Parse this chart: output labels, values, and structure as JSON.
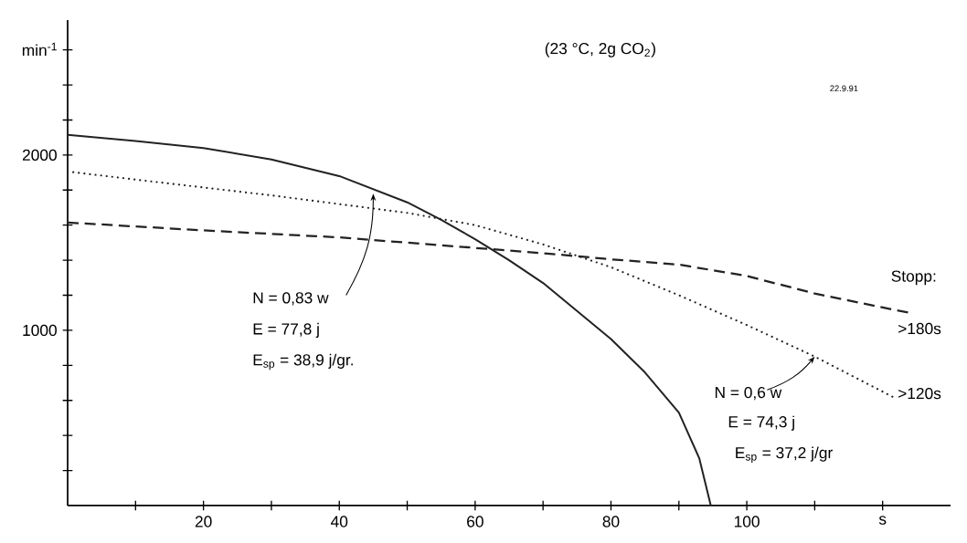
{
  "chart_data": {
    "type": "line",
    "title": "(23 °C, 2g CO$_{2}$)",
    "xlim": [
      0,
      130
    ],
    "ylim": [
      0,
      2770
    ],
    "xticks": [
      {
        "value": 10,
        "label": null
      },
      20,
      {
        "value": 30,
        "label": null
      },
      40,
      {
        "value": 50,
        "label": null
      },
      60,
      {
        "value": 70,
        "label": null
      },
      80,
      {
        "value": 90,
        "label": null
      },
      100,
      {
        "value": 110,
        "label": null
      },
      {
        "value": 120,
        "label": "s"
      }
    ],
    "yticks": [
      {
        "value": 200,
        "label": null
      },
      {
        "value": 400,
        "label": null
      },
      {
        "value": 600,
        "label": null
      },
      {
        "value": 800,
        "label": null
      },
      1000,
      {
        "value": 1200,
        "label": null
      },
      {
        "value": 1400,
        "label": null
      },
      {
        "value": 1600,
        "label": null
      },
      {
        "value": 1800,
        "label": null
      },
      2000,
      {
        "value": 2200,
        "label": null
      },
      {
        "value": 2400,
        "label": null
      },
      {
        "value": 2600,
        "label": null
      }
    ],
    "ylabel": "min$^{-1}$",
    "grid": false,
    "series": [
      {
        "color": "#222222",
        "line_style": "solid",
        "x": [
          0,
          10,
          20,
          30,
          40,
          50,
          55,
          60,
          65,
          70,
          75,
          80,
          85,
          90,
          93,
          94.7
        ],
        "values": [
          2115,
          2080,
          2040,
          1975,
          1880,
          1730,
          1630,
          1520,
          1400,
          1270,
          1110,
          950,
          760,
          530,
          270,
          0
        ]
      },
      {
        "color": "#222222",
        "line_style": "dotted",
        "x": [
          0,
          10,
          20,
          30,
          40,
          50,
          60,
          70,
          80,
          90,
          100,
          110,
          120,
          122
        ],
        "values": [
          1906,
          1860,
          1815,
          1770,
          1720,
          1670,
          1600,
          1490,
          1360,
          1200,
          1030,
          850,
          650,
          610
        ]
      },
      {
        "color": "#222222",
        "line_style": "dashed",
        "x": [
          0,
          20,
          40,
          60,
          70,
          80,
          90,
          100,
          110,
          120,
          124
        ],
        "values": [
          1615,
          1570,
          1530,
          1470,
          1440,
          1405,
          1375,
          1310,
          1210,
          1130,
          1100
        ]
      }
    ],
    "annotations": [
      {
        "text": "N = 0,83 w",
        "x": 45,
        "y": 1780
      },
      "E = 77,8 j",
      "E$_{sp}$ = 38,9 j/gr.",
      {
        "text": "N = 0,6 w",
        "x": 110,
        "y": 850
      },
      "E = 74,3 j",
      "E$_{sp}$ = 37,2 j/gr",
      "Stopp:",
      ">180s",
      ">120s",
      "22.9.91"
    ]
  }
}
